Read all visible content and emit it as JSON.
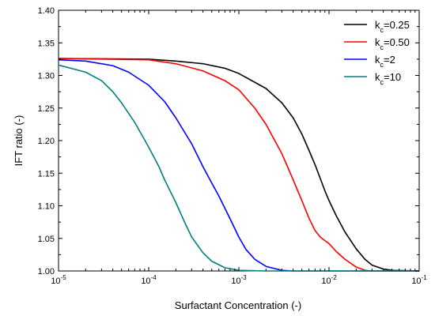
{
  "chart_data": {
    "type": "line",
    "xlabel": "Surfactant Concentration (-)",
    "ylabel": "IFT ratio (-)",
    "x_scale": "log",
    "xlim": [
      1e-05,
      0.1
    ],
    "ylim": [
      1.0,
      1.4
    ],
    "x_tick_labels": [
      {
        "base": "10",
        "exp": "-5",
        "value": 1e-05
      },
      {
        "base": "10",
        "exp": "-4",
        "value": 0.0001
      },
      {
        "base": "10",
        "exp": "-3",
        "value": 0.001
      },
      {
        "base": "10",
        "exp": "-2",
        "value": 0.01
      },
      {
        "base": "10",
        "exp": "-1",
        "value": 0.1
      }
    ],
    "y_ticks": [
      "1.00",
      "1.05",
      "1.10",
      "1.15",
      "1.20",
      "1.25",
      "1.30",
      "1.35",
      "1.40"
    ],
    "grid": false,
    "legend_position": "top-right",
    "series": [
      {
        "name": "k_c=0.25",
        "legend_main": "k",
        "legend_sub": "c",
        "legend_rest": "=0.25",
        "color": "#000000",
        "points": [
          [
            1e-05,
            1.326
          ],
          [
            0.0001,
            1.325
          ],
          [
            0.0002,
            1.322
          ],
          [
            0.0004,
            1.318
          ],
          [
            0.0007,
            1.311
          ],
          [
            0.001,
            1.303
          ],
          [
            0.002,
            1.28
          ],
          [
            0.003,
            1.258
          ],
          [
            0.004,
            1.235
          ],
          [
            0.005,
            1.21
          ],
          [
            0.006,
            1.185
          ],
          [
            0.007,
            1.163
          ],
          [
            0.008,
            1.142
          ],
          [
            0.009,
            1.123
          ],
          [
            0.01,
            1.108
          ],
          [
            0.012,
            1.085
          ],
          [
            0.015,
            1.06
          ],
          [
            0.02,
            1.034
          ],
          [
            0.025,
            1.018
          ],
          [
            0.03,
            1.009
          ],
          [
            0.04,
            1.003
          ],
          [
            0.05,
            1.001
          ],
          [
            0.1,
            1.0
          ]
        ]
      },
      {
        "name": "k_c=0.50",
        "legend_main": "k",
        "legend_sub": "c",
        "legend_rest": "=0.50",
        "color": "#ff0000",
        "points": [
          [
            1e-05,
            1.326
          ],
          [
            0.0001,
            1.324
          ],
          [
            0.0002,
            1.318
          ],
          [
            0.0004,
            1.307
          ],
          [
            0.0007,
            1.292
          ],
          [
            0.001,
            1.278
          ],
          [
            0.0015,
            1.25
          ],
          [
            0.002,
            1.225
          ],
          [
            0.003,
            1.18
          ],
          [
            0.004,
            1.14
          ],
          [
            0.005,
            1.108
          ],
          [
            0.006,
            1.081
          ],
          [
            0.007,
            1.062
          ],
          [
            0.008,
            1.052
          ],
          [
            0.01,
            1.042
          ],
          [
            0.012,
            1.03
          ],
          [
            0.015,
            1.018
          ],
          [
            0.02,
            1.006
          ],
          [
            0.025,
            1.001
          ],
          [
            0.03,
            1.0
          ],
          [
            0.1,
            1.0
          ]
        ]
      },
      {
        "name": "k_c=2",
        "legend_main": "k",
        "legend_sub": "c",
        "legend_rest": "=2",
        "color": "#0000ff",
        "points": [
          [
            1e-05,
            1.324
          ],
          [
            2e-05,
            1.322
          ],
          [
            4e-05,
            1.315
          ],
          [
            6e-05,
            1.305
          ],
          [
            0.0001,
            1.285
          ],
          [
            0.00015,
            1.26
          ],
          [
            0.0002,
            1.235
          ],
          [
            0.0003,
            1.195
          ],
          [
            0.0004,
            1.16
          ],
          [
            0.0005,
            1.135
          ],
          [
            0.0006,
            1.115
          ],
          [
            0.0008,
            1.08
          ],
          [
            0.001,
            1.052
          ],
          [
            0.0012,
            1.033
          ],
          [
            0.0015,
            1.018
          ],
          [
            0.002,
            1.007
          ],
          [
            0.003,
            1.001
          ],
          [
            0.004,
            1.0
          ],
          [
            0.1,
            1.0
          ]
        ]
      },
      {
        "name": "k_c=10",
        "legend_main": "k",
        "legend_sub": "c",
        "legend_rest": "=10",
        "color": "#008080",
        "points": [
          [
            1e-05,
            1.316
          ],
          [
            2e-05,
            1.305
          ],
          [
            3e-05,
            1.292
          ],
          [
            4e-05,
            1.275
          ],
          [
            5e-05,
            1.258
          ],
          [
            7e-05,
            1.228
          ],
          [
            0.0001,
            1.19
          ],
          [
            0.00013,
            1.16
          ],
          [
            0.00015,
            1.14
          ],
          [
            0.0002,
            1.105
          ],
          [
            0.00025,
            1.075
          ],
          [
            0.0003,
            1.052
          ],
          [
            0.0004,
            1.028
          ],
          [
            0.0005,
            1.015
          ],
          [
            0.0007,
            1.005
          ],
          [
            0.001,
            1.001
          ],
          [
            0.002,
            1.0
          ],
          [
            0.1,
            1.0
          ]
        ]
      }
    ]
  }
}
